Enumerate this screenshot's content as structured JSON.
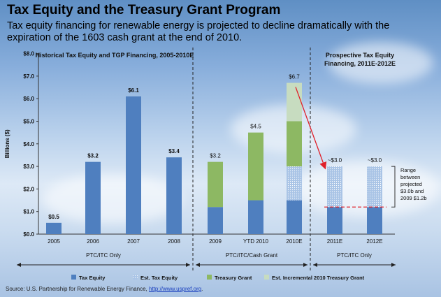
{
  "header": {
    "title": "Tax Equity and the Treasury Grant Program",
    "subtitle": "Tax equity financing for renewable energy is projected to decline dramatically with the expiration of the 1603 cash grant at the end of 2010."
  },
  "source": {
    "prefix": "Source: U.S. Partnership for Renewable Energy Finance, ",
    "link": "http://www.uspref.org",
    "suffix": "."
  },
  "colors": {
    "tax_equity": "#4f7fbf",
    "treasury_grant": "#8db863",
    "est_incremental": "#c7dcc0",
    "est_tax_equity": "#a9c4e6",
    "arrow": "#e0202a"
  },
  "chart_data": {
    "type": "bar",
    "stacked": true,
    "ylabel": "Billions ($)",
    "ylim": [
      0,
      8
    ],
    "yticks": [
      "$0.0",
      "$1.0",
      "$2.0",
      "$3.0",
      "$4.0",
      "$5.0",
      "$6.0",
      "$7.0",
      "$8.0"
    ],
    "categories": [
      "2005",
      "2006",
      "2007",
      "2008",
      "2009",
      "YTD 2010",
      "2010E",
      "2011E",
      "2012E"
    ],
    "series": [
      {
        "name": "Tax Equity",
        "values": [
          0.5,
          3.2,
          6.1,
          3.4,
          1.2,
          1.5,
          1.5,
          1.2,
          1.2
        ]
      },
      {
        "name": "Est. Tax Equity",
        "values": [
          0,
          0,
          0,
          0,
          0,
          0,
          1.5,
          1.8,
          1.8
        ]
      },
      {
        "name": "Treasury Grant",
        "values": [
          0,
          0,
          0,
          0,
          2.0,
          3.0,
          2.0,
          0,
          0
        ]
      },
      {
        "name": "Est. Incremental 2010 Treasury Grant",
        "values": [
          0,
          0,
          0,
          0,
          0,
          0,
          1.7,
          0,
          0
        ]
      }
    ],
    "total_labels": [
      "$0.5",
      "$3.2",
      "$6.1",
      "$3.4",
      "$3.2",
      "$4.5",
      "$6.7",
      "~$3.0",
      "~$3.0"
    ],
    "total_values": [
      0.5,
      3.2,
      6.1,
      3.4,
      3.2,
      4.5,
      6.7,
      3.0,
      3.0
    ],
    "section_titles": [
      "Historical Tax Equity and TGP Financing, 2005-2010E",
      "Prospective Tax Equity\nFinancing, 2011E-2012E"
    ],
    "period_labels": [
      "PTC/ITC Only",
      "PTC/ITC/Cash Grant",
      "PTC/ITC Only"
    ],
    "range_annotation": [
      "Range",
      "between",
      "projected",
      "$3.0b and",
      "2009 $1.2b"
    ],
    "range_low": 1.2,
    "legend": [
      "Tax Equity",
      "Est. Tax Equity",
      "Treasury Grant",
      "Est. Incremental 2010 Treasury Grant"
    ],
    "grid": false
  }
}
